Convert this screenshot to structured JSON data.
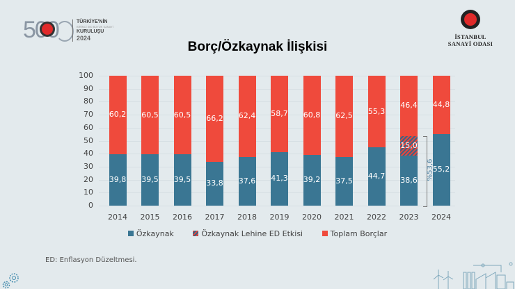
{
  "header": {
    "logo_left": {
      "big_number": "500",
      "line1": "TÜRKİYE'NİN",
      "line2": "BİRİNCİ 500 BÜYÜK SANAYİ",
      "line3": "KURULUŞU",
      "line4": "2024"
    },
    "logo_right": {
      "line1": "İSTANBUL",
      "line2": "SANAYİ ODASI"
    },
    "title": "Borç/Özkaynak İlişkisi"
  },
  "colors": {
    "ozkaynak": "#3a7693",
    "ed_etkisi_a": "#e8453c",
    "ed_etkisi_b": "#3a6585",
    "toplam_borclar": "#ef4a3c",
    "background": "#e3eaed"
  },
  "chart_data": {
    "type": "bar",
    "stacked": true,
    "title": "Borç/Özkaynak İlişkisi",
    "xlabel": "",
    "ylabel": "",
    "ylim": [
      0,
      100
    ],
    "yticks": [
      0,
      10,
      20,
      30,
      40,
      50,
      60,
      70,
      80,
      90,
      100
    ],
    "grid": true,
    "legend_position": "bottom",
    "categories": [
      "2014",
      "2015",
      "2016",
      "2017",
      "2018",
      "2019",
      "2020",
      "2021",
      "2022",
      "2023",
      "2024"
    ],
    "series": [
      {
        "name": "Özkaynak",
        "values": [
          39.8,
          39.5,
          39.5,
          33.8,
          37.6,
          41.3,
          39.2,
          37.5,
          44.7,
          38.6,
          55.2
        ],
        "labels": [
          "39,8",
          "39,5",
          "39,5",
          "33,8",
          "37,6",
          "41,3",
          "39,2",
          "37,5",
          "44,7",
          "38,6",
          "55,2"
        ]
      },
      {
        "name": "Özkaynak Lehine ED Etkisi",
        "values": [
          0,
          0,
          0,
          0,
          0,
          0,
          0,
          0,
          0,
          15.0,
          0
        ],
        "labels": [
          "",
          "",
          "",
          "",
          "",
          "",
          "",
          "",
          "",
          "15,0",
          ""
        ]
      },
      {
        "name": "Toplam Borçlar",
        "values": [
          60.2,
          60.5,
          60.5,
          66.2,
          62.4,
          58.7,
          60.8,
          62.5,
          55.3,
          46.4,
          44.8
        ],
        "labels": [
          "60,2",
          "60,5",
          "60,5",
          "66,2",
          "62,4",
          "58,7",
          "60,8",
          "62,5",
          "55,3",
          "46,4",
          "44,8"
        ]
      }
    ],
    "annotations": [
      {
        "type": "bracket",
        "category": "2023",
        "from": 0,
        "to": 53.6,
        "text": "%53,6"
      }
    ]
  },
  "legend": [
    {
      "label": "Özkaynak",
      "swatch": "solid-blue"
    },
    {
      "label": "Özkaynak Lehine ED Etkisi",
      "swatch": "hatched"
    },
    {
      "label": "Toplam Borçlar",
      "swatch": "solid-red"
    }
  ],
  "footnote": "ED: Enflasyon Düzeltmesi."
}
